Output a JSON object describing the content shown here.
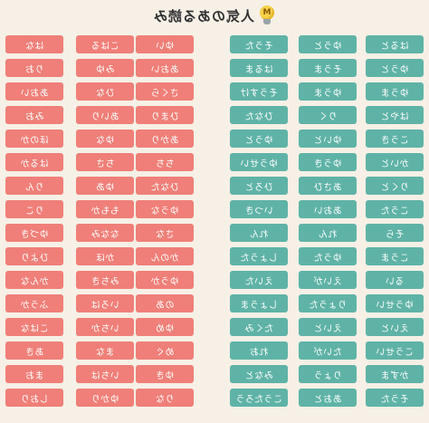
{
  "header": {
    "title": "人気のある読み",
    "icon": "lightbulb-icon",
    "icon_letter": "M"
  },
  "colors": {
    "pink": "#ef7f78",
    "teal": "#5fb3a6",
    "background": "#f6f0e6"
  },
  "columns": [
    {
      "color": "pink",
      "items": [
        "はな",
        "りお",
        "あおい",
        "みお",
        "ほのか",
        "はるか",
        "りん",
        "りこ",
        "ゆづき",
        "ひより",
        "かんな",
        "ふうか",
        "こはな",
        "あき",
        "まお",
        "しおり"
      ]
    },
    {
      "color": "pink",
      "items": [
        "こはる",
        "みゆ",
        "ひな",
        "あいり",
        "ゆな",
        "ちさ",
        "ゆあ",
        "ももか",
        "ななみ",
        "かほ",
        "みちき",
        "いろは",
        "いちか",
        "まな",
        "いちは",
        "ゆかり"
      ]
    },
    {
      "color": "pink",
      "items": [
        "ゆい",
        "あおい",
        "さくら",
        "ひまり",
        "あかり",
        "ちち",
        "ひなた",
        "ゆうな",
        "さな",
        "かのん",
        "ゆうか",
        "のあ",
        "ゆめ",
        "めぐ",
        "ゆき",
        "りな"
      ]
    },
    {
      "color": "teal",
      "items": [
        "そうた",
        "はるま",
        "そうすけ",
        "ひなた",
        "ゆうと",
        "ゆうせい",
        "ひろと",
        "いつき",
        "れん",
        "しょうた",
        "えいた",
        "しょうま",
        "たくみ",
        "れお",
        "みなと",
        "こうたろう"
      ]
    },
    {
      "color": "teal",
      "items": [
        "ゆうと",
        "そうま",
        "ゆうま",
        "りく",
        "ゆいと",
        "ゆうき",
        "あさひ",
        "あおい",
        "れん",
        "ゆうた",
        "えいが",
        "りょうた",
        "えいと",
        "たいが",
        "りょう",
        "あおと"
      ]
    },
    {
      "color": "teal",
      "items": [
        "はると",
        "ゆうと",
        "ゆうま",
        "はやと",
        "こうき",
        "かいと",
        "りくと",
        "こうた",
        "そら",
        "こうま",
        "るい",
        "ゆうせい",
        "えいと",
        "こうせい",
        "かずま",
        "そうた"
      ]
    }
  ]
}
